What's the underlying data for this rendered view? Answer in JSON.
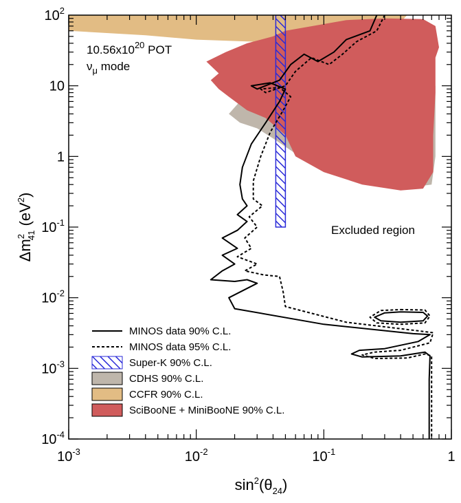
{
  "chart_data": {
    "type": "line",
    "xscale": "log",
    "yscale": "log",
    "xlim": [
      0.001,
      1
    ],
    "ylim": [
      0.0001,
      100
    ],
    "xlabel": "sin²(θ₂₄)",
    "ylabel": "Δm²₄₁ (eV²)",
    "xlabel_parts": {
      "main": "sin",
      "sup": "2",
      "open": "(θ",
      "sub": "24",
      "close": ")"
    },
    "ylabel_parts": {
      "delta": "Δm",
      "sup": "2",
      "sub": "41",
      "unit_open": " (eV",
      "unit_sup": "2",
      "unit_close": ")"
    },
    "xticks": [
      {
        "value": 0.001,
        "base": "10",
        "exp": "-3"
      },
      {
        "value": 0.01,
        "base": "10",
        "exp": "-2"
      },
      {
        "value": 0.1,
        "base": "10",
        "exp": "-1"
      },
      {
        "value": 1,
        "base": "1",
        "exp": ""
      }
    ],
    "yticks": [
      {
        "value": 0.0001,
        "base": "10",
        "exp": "-4"
      },
      {
        "value": 0.001,
        "base": "10",
        "exp": "-3"
      },
      {
        "value": 0.01,
        "base": "10",
        "exp": "-2"
      },
      {
        "value": 0.1,
        "base": "10",
        "exp": "-1"
      },
      {
        "value": 1,
        "base": "1",
        "exp": ""
      },
      {
        "value": 10,
        "base": "10",
        "exp": ""
      },
      {
        "value": 100,
        "base": "10",
        "exp": "2"
      }
    ],
    "annotations": {
      "pot_main": "10.56x10",
      "pot_sup": "20",
      "pot_unit": " POT",
      "mode_nu": "ν",
      "mode_sub": "μ",
      "mode_text": " mode",
      "excluded": "Excluded region"
    },
    "colors": {
      "minos": "#000000",
      "superk": "#2a2ad8",
      "cdhs": "#bfb6ab",
      "ccfr": "#e2bc84",
      "sciboone": "#d05c5c"
    },
    "legend": {
      "position": "bottom-left",
      "entries": [
        {
          "label": "MINOS data 90% C.L.",
          "kind": "line-solid"
        },
        {
          "label": "MINOS data 95% C.L.",
          "kind": "line-dashed"
        },
        {
          "label": "Super-K 90% C.L.",
          "kind": "hatch"
        },
        {
          "label": "CDHS 90% C.L.",
          "kind": "fill-cdhs"
        },
        {
          "label": "CCFR 90% C.L.",
          "kind": "fill-ccfr"
        },
        {
          "label": "SciBooNE + MiniBooNE 90% C.L.",
          "kind": "fill-sciboone"
        }
      ]
    },
    "series": [
      {
        "name": "MINOS data 90% C.L.",
        "style": "solid",
        "points": [
          [
            0.26,
            100
          ],
          [
            0.23,
            60
          ],
          [
            0.15,
            45
          ],
          [
            0.12,
            30
          ],
          [
            0.09,
            22
          ],
          [
            0.07,
            28
          ],
          [
            0.055,
            20
          ],
          [
            0.045,
            12
          ],
          [
            0.03,
            9
          ],
          [
            0.027,
            10
          ],
          [
            0.038,
            11
          ],
          [
            0.05,
            9
          ],
          [
            0.045,
            6
          ],
          [
            0.035,
            3
          ],
          [
            0.027,
            1.5
          ],
          [
            0.023,
            0.7
          ],
          [
            0.022,
            0.4
          ],
          [
            0.023,
            0.25
          ],
          [
            0.025,
            0.2
          ],
          [
            0.021,
            0.15
          ],
          [
            0.025,
            0.12
          ],
          [
            0.021,
            0.09
          ],
          [
            0.016,
            0.07
          ],
          [
            0.021,
            0.05
          ],
          [
            0.016,
            0.04
          ],
          [
            0.02,
            0.03
          ],
          [
            0.016,
            0.024
          ],
          [
            0.013,
            0.018
          ],
          [
            0.02,
            0.017
          ],
          [
            0.025,
            0.018
          ],
          [
            0.03,
            0.016
          ],
          [
            0.018,
            0.01
          ],
          [
            0.02,
            0.007
          ],
          [
            0.1,
            0.0042
          ],
          [
            0.5,
            0.0031
          ],
          [
            0.68,
            0.003
          ],
          [
            0.55,
            0.0024
          ],
          [
            0.3,
            0.0019
          ],
          [
            0.19,
            0.0018
          ],
          [
            0.165,
            0.0016
          ],
          [
            0.2,
            0.00145
          ],
          [
            0.4,
            0.0015
          ],
          [
            0.62,
            0.0017
          ],
          [
            0.68,
            0.0015
          ],
          [
            0.67,
            0.0007
          ],
          [
            0.67,
            0.0002
          ],
          [
            0.67,
            0.0001
          ]
        ]
      },
      {
        "name": "MINOS data 95% C.L.",
        "style": "dashed",
        "points": [
          [
            0.3,
            100
          ],
          [
            0.26,
            60
          ],
          [
            0.18,
            42
          ],
          [
            0.14,
            28
          ],
          [
            0.11,
            20
          ],
          [
            0.08,
            25
          ],
          [
            0.06,
            16
          ],
          [
            0.05,
            10
          ],
          [
            0.035,
            8
          ],
          [
            0.032,
            9
          ],
          [
            0.045,
            9.5
          ],
          [
            0.055,
            7
          ],
          [
            0.048,
            4.5
          ],
          [
            0.038,
            2.2
          ],
          [
            0.032,
            1
          ],
          [
            0.028,
            0.45
          ],
          [
            0.028,
            0.25
          ],
          [
            0.033,
            0.2
          ],
          [
            0.026,
            0.14
          ],
          [
            0.03,
            0.1
          ],
          [
            0.024,
            0.07
          ],
          [
            0.027,
            0.05
          ],
          [
            0.021,
            0.038
          ],
          [
            0.03,
            0.03
          ],
          [
            0.024,
            0.024
          ],
          [
            0.034,
            0.021
          ],
          [
            0.045,
            0.02
          ],
          [
            0.048,
            0.012
          ],
          [
            0.05,
            0.0075
          ],
          [
            0.15,
            0.0045
          ],
          [
            0.55,
            0.0034
          ],
          [
            0.72,
            0.0032
          ],
          [
            0.68,
            0.0023
          ],
          [
            0.4,
            0.0018
          ],
          [
            0.25,
            0.0017
          ],
          [
            0.2,
            0.00155
          ],
          [
            0.25,
            0.00138
          ],
          [
            0.45,
            0.0014
          ],
          [
            0.62,
            0.0016
          ],
          [
            0.7,
            0.0015
          ],
          [
            0.7,
            0.0005
          ],
          [
            0.7,
            0.0001
          ]
        ]
      },
      {
        "name": "MINOS data 90% C.L. (island)",
        "style": "solid",
        "points": [
          [
            0.4,
            0.0063
          ],
          [
            0.6,
            0.0062
          ],
          [
            0.65,
            0.0055
          ],
          [
            0.6,
            0.0047
          ],
          [
            0.4,
            0.0045
          ],
          [
            0.28,
            0.0047
          ],
          [
            0.25,
            0.0053
          ],
          [
            0.3,
            0.0061
          ],
          [
            0.4,
            0.0063
          ]
        ]
      },
      {
        "name": "MINOS data 95% C.L. (island)",
        "style": "dashed",
        "points": [
          [
            0.4,
            0.0068
          ],
          [
            0.62,
            0.0067
          ],
          [
            0.68,
            0.0055
          ],
          [
            0.62,
            0.0044
          ],
          [
            0.4,
            0.0042
          ],
          [
            0.26,
            0.0044
          ],
          [
            0.23,
            0.0053
          ],
          [
            0.28,
            0.0066
          ],
          [
            0.4,
            0.0068
          ]
        ]
      }
    ],
    "regions": [
      {
        "name": "CCFR 90% C.L.",
        "color": "#e2bc84",
        "points": [
          [
            0.001,
            100
          ],
          [
            0.45,
            100
          ],
          [
            0.4,
            80
          ],
          [
            0.3,
            55
          ],
          [
            0.15,
            50
          ],
          [
            0.06,
            45
          ],
          [
            0.03,
            42
          ],
          [
            0.01,
            45
          ],
          [
            0.004,
            52
          ],
          [
            0.001,
            60
          ]
        ]
      },
      {
        "name": "CDHS 90% C.L.",
        "color": "#bfb6ab",
        "points": [
          [
            0.06,
            10
          ],
          [
            0.03,
            8
          ],
          [
            0.022,
            6
          ],
          [
            0.018,
            4
          ],
          [
            0.022,
            3
          ],
          [
            0.03,
            2.5
          ],
          [
            0.04,
            1.8
          ],
          [
            0.06,
            1.1
          ],
          [
            0.1,
            0.7
          ],
          [
            0.2,
            0.45
          ],
          [
            0.4,
            0.35
          ],
          [
            0.7,
            0.4
          ],
          [
            0.75,
            1
          ],
          [
            0.75,
            10
          ],
          [
            0.5,
            12
          ]
        ]
      },
      {
        "name": "SciBooNE + MiniBooNE 90% C.L.",
        "color": "#d05c5c",
        "points": [
          [
            0.05,
            60
          ],
          [
            0.15,
            85
          ],
          [
            0.3,
            90
          ],
          [
            0.6,
            88
          ],
          [
            0.75,
            70
          ],
          [
            0.8,
            35
          ],
          [
            0.75,
            25
          ],
          [
            0.75,
            8
          ],
          [
            0.72,
            2
          ],
          [
            0.72,
            0.6
          ],
          [
            0.6,
            0.35
          ],
          [
            0.4,
            0.33
          ],
          [
            0.2,
            0.4
          ],
          [
            0.1,
            0.6
          ],
          [
            0.06,
            1
          ],
          [
            0.05,
            2
          ],
          [
            0.035,
            3.5
          ],
          [
            0.025,
            4.5
          ],
          [
            0.018,
            7
          ],
          [
            0.015,
            9
          ],
          [
            0.013,
            12
          ],
          [
            0.015,
            15
          ],
          [
            0.012,
            22
          ],
          [
            0.017,
            30
          ],
          [
            0.025,
            40
          ],
          [
            0.04,
            50
          ]
        ]
      },
      {
        "name": "Super-K 90% C.L.",
        "color": "#2a2ad8",
        "hatched": true,
        "points": [
          [
            0.042,
            100
          ],
          [
            0.05,
            100
          ],
          [
            0.05,
            0.1
          ],
          [
            0.042,
            0.1
          ]
        ]
      }
    ]
  }
}
